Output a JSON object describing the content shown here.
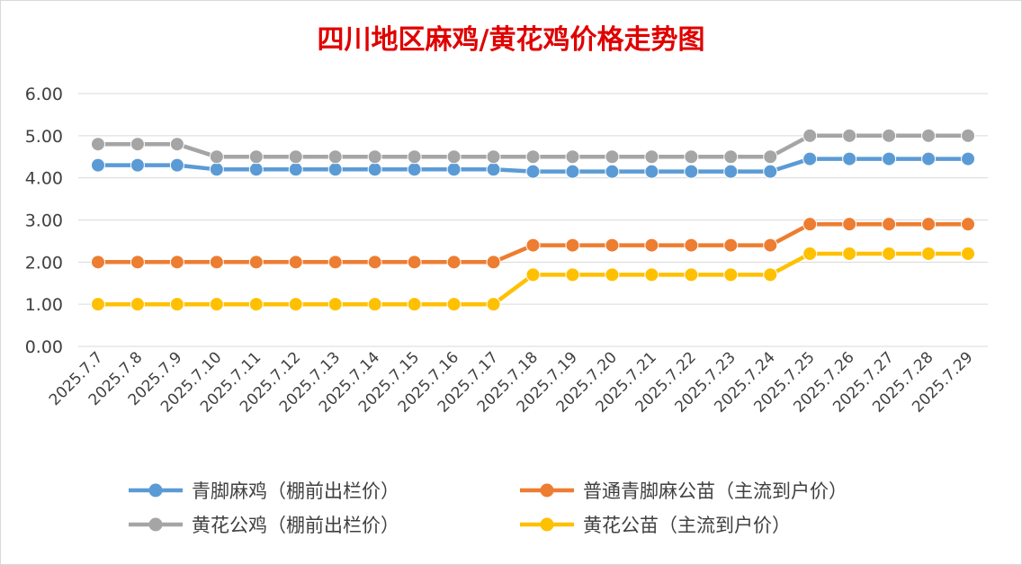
{
  "chart_data": {
    "type": "line",
    "title": "四川地区麻鸡/黄花鸡价格走势图",
    "categories": [
      "2025.7.7",
      "2025.7.8",
      "2025.7.9",
      "2025.7.10",
      "2025.7.11",
      "2025.7.12",
      "2025.7.13",
      "2025.7.14",
      "2025.7.15",
      "2025.7.16",
      "2025.7.17",
      "2025.7.18",
      "2025.7.19",
      "2025.7.20",
      "2025.7.21",
      "2025.7.22",
      "2025.7.23",
      "2025.7.24",
      "2025.7.25",
      "2025.7.26",
      "2025.7.27",
      "2025.7.28",
      "2025.7.29"
    ],
    "ylim": [
      0,
      6
    ],
    "yticks": [
      "0.00",
      "1.00",
      "2.00",
      "3.00",
      "4.00",
      "5.00",
      "6.00"
    ],
    "grid": true,
    "legend_position": "bottom",
    "series": [
      {
        "name": "青脚麻鸡（棚前出栏价）",
        "color": "#5b9bd5",
        "values": [
          4.3,
          4.3,
          4.3,
          4.2,
          4.2,
          4.2,
          4.2,
          4.2,
          4.2,
          4.2,
          4.2,
          4.15,
          4.15,
          4.15,
          4.15,
          4.15,
          4.15,
          4.15,
          4.45,
          4.45,
          4.45,
          4.45,
          4.45
        ]
      },
      {
        "name": "普通青脚麻公苗（主流到户价）",
        "color": "#ed7d31",
        "values": [
          2.0,
          2.0,
          2.0,
          2.0,
          2.0,
          2.0,
          2.0,
          2.0,
          2.0,
          2.0,
          2.0,
          2.4,
          2.4,
          2.4,
          2.4,
          2.4,
          2.4,
          2.4,
          2.9,
          2.9,
          2.9,
          2.9,
          2.9
        ]
      },
      {
        "name": "黄花公鸡（棚前出栏价）",
        "color": "#a5a5a5",
        "values": [
          4.8,
          4.8,
          4.8,
          4.5,
          4.5,
          4.5,
          4.5,
          4.5,
          4.5,
          4.5,
          4.5,
          4.5,
          4.5,
          4.5,
          4.5,
          4.5,
          4.5,
          4.5,
          5.0,
          5.0,
          5.0,
          5.0,
          5.0
        ]
      },
      {
        "name": "黄花公苗（主流到户价）",
        "color": "#ffc000",
        "values": [
          1.0,
          1.0,
          1.0,
          1.0,
          1.0,
          1.0,
          1.0,
          1.0,
          1.0,
          1.0,
          1.0,
          1.7,
          1.7,
          1.7,
          1.7,
          1.7,
          1.7,
          1.7,
          2.2,
          2.2,
          2.2,
          2.2,
          2.2
        ]
      }
    ]
  }
}
